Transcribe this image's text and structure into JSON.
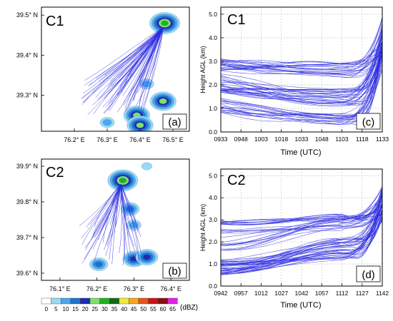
{
  "colors": {
    "trajectory": "#2a2ae0",
    "axis": "#000000",
    "grid": "#bdbdbd"
  },
  "chart_data": [
    {
      "panel": "a",
      "case": "C1",
      "panel_label": "(a)",
      "type": "heatmap",
      "xlim": [
        76.1,
        76.55
      ],
      "ylim": [
        39.21,
        39.52
      ],
      "x_ticks": [
        {
          "value": 76.2,
          "label": "76.2° E"
        },
        {
          "value": 76.3,
          "label": "76.3° E"
        },
        {
          "value": 76.4,
          "label": "76.4° E"
        },
        {
          "value": 76.5,
          "label": "76.5° E"
        }
      ],
      "y_ticks": [
        {
          "value": 39.3,
          "label": "39.3° N"
        },
        {
          "value": 39.4,
          "label": "39.4° N"
        },
        {
          "value": 39.5,
          "label": "39.5° N"
        }
      ],
      "storm_cells": [
        {
          "lon": 76.475,
          "lat": 39.48,
          "peak_dbz": 30
        },
        {
          "lon": 76.39,
          "lat": 39.25,
          "peak_dbz": 25
        },
        {
          "lon": 76.47,
          "lat": 39.285,
          "peak_dbz": 25
        },
        {
          "lon": 76.4,
          "lat": 39.225,
          "peak_dbz": 25
        },
        {
          "lon": 76.3,
          "lat": 39.232,
          "peak_dbz": 10
        },
        {
          "lon": 76.42,
          "lat": 39.328,
          "peak_dbz": 10
        }
      ],
      "trajectories": {
        "start": {
          "lon": 76.47,
          "lat": 39.47
        },
        "count": 70,
        "end_lon_range": [
          76.22,
          76.41
        ],
        "end_lat_range": [
          39.25,
          39.35
        ]
      }
    },
    {
      "panel": "b",
      "case": "C2",
      "panel_label": "(b)",
      "type": "heatmap",
      "xlim": [
        76.05,
        76.45
      ],
      "ylim": [
        39.58,
        39.92
      ],
      "x_ticks": [
        {
          "value": 76.1,
          "label": "76.1° E"
        },
        {
          "value": 76.2,
          "label": "76.2° E"
        },
        {
          "value": 76.3,
          "label": "76.3° E"
        },
        {
          "value": 76.4,
          "label": "76.4° E"
        }
      ],
      "y_ticks": [
        {
          "value": 39.6,
          "label": "39.6° N"
        },
        {
          "value": 39.7,
          "label": "39.7° N"
        },
        {
          "value": 39.8,
          "label": "39.8° N"
        },
        {
          "value": 39.9,
          "label": "39.9° N"
        }
      ],
      "storm_cells": [
        {
          "lon": 76.27,
          "lat": 39.86,
          "peak_dbz": 30
        },
        {
          "lon": 76.335,
          "lat": 39.9,
          "peak_dbz": 5
        },
        {
          "lon": 76.3,
          "lat": 39.64,
          "peak_dbz": 20
        },
        {
          "lon": 76.335,
          "lat": 39.645,
          "peak_dbz": 20
        },
        {
          "lon": 76.205,
          "lat": 39.625,
          "peak_dbz": 15
        },
        {
          "lon": 76.3,
          "lat": 39.735,
          "peak_dbz": 10
        },
        {
          "lon": 76.29,
          "lat": 39.78,
          "peak_dbz": 15
        }
      ],
      "trajectories": {
        "start": {
          "lon": 76.265,
          "lat": 39.85
        },
        "count": 45,
        "end_lon_range": [
          76.15,
          76.32
        ],
        "end_lat_range": [
          39.62,
          39.74
        ]
      }
    },
    {
      "panel": "c",
      "case": "C1",
      "panel_label": "(c)",
      "type": "line",
      "xlabel": "Time (UTC)",
      "ylabel": "Height AGL (km)",
      "x_ticks": [
        "0933",
        "0948",
        "1003",
        "1018",
        "1033",
        "1048",
        "1103",
        "1118",
        "1133"
      ],
      "ylim": [
        0,
        5.3
      ],
      "y_ticks": [
        "0.0",
        "1.0",
        "2.0",
        "3.0",
        "4.0",
        "5.0"
      ],
      "grid": true,
      "series_groups": [
        {
          "count": 24,
          "start_km": [
            2.55,
            3.15
          ],
          "mid_km": [
            2.3,
            2.95
          ],
          "end_km": [
            3.3,
            4.9
          ]
        },
        {
          "count": 30,
          "start_km": [
            1.45,
            2.5
          ],
          "mid_km": [
            1.1,
            1.9
          ],
          "end_km": [
            3.0,
            4.6
          ]
        },
        {
          "count": 20,
          "start_km": [
            0.75,
            1.5
          ],
          "mid_km": [
            0.3,
            0.8
          ],
          "end_km": [
            2.6,
            4.2
          ]
        }
      ]
    },
    {
      "panel": "d",
      "case": "C2",
      "panel_label": "(d)",
      "type": "line",
      "xlabel": "Time (UTC)",
      "ylabel": "Height AGL (km)",
      "x_ticks": [
        "0942",
        "0957",
        "1012",
        "1027",
        "1042",
        "1057",
        "1112",
        "1127",
        "1142"
      ],
      "ylim": [
        0,
        5.3
      ],
      "y_ticks": [
        "0.0",
        "1.0",
        "2.0",
        "3.0",
        "4.0",
        "5.0"
      ],
      "grid": true,
      "series_groups": [
        {
          "count": 12,
          "start_km": [
            2.8,
            2.95
          ],
          "mid_km": [
            3.0,
            3.2
          ],
          "end_km": [
            3.3,
            4.5
          ]
        },
        {
          "count": 18,
          "start_km": [
            1.6,
            2.7
          ],
          "mid_km": [
            2.6,
            3.1
          ],
          "end_km": [
            3.2,
            4.6
          ]
        },
        {
          "count": 40,
          "start_km": [
            0.5,
            1.2
          ],
          "mid_km": [
            1.2,
            2.2
          ],
          "end_km": [
            2.9,
            4.5
          ]
        }
      ]
    }
  ],
  "colorbar": {
    "unit": "(dBZ)",
    "levels": [
      "0",
      "5",
      "10",
      "15",
      "20",
      "25",
      "30",
      "35",
      "40",
      "45",
      "50",
      "55",
      "60",
      "65"
    ],
    "colors": [
      "#ffffff",
      "#9ad8f5",
      "#4aa8ee",
      "#1e72d0",
      "#1b2eaf",
      "#7ee06a",
      "#20b024",
      "#136b13",
      "#f2e63a",
      "#f3a81c",
      "#e8541a",
      "#cf1313",
      "#8b0c0c",
      "#e020e8"
    ]
  }
}
